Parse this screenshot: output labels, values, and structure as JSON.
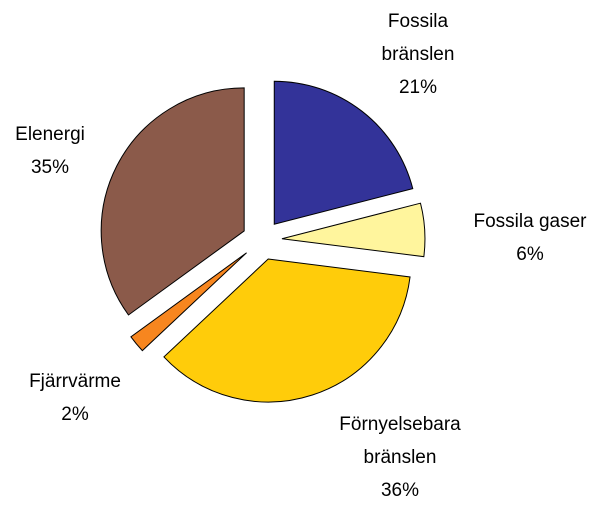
{
  "chart_data": {
    "type": "pie",
    "categories": [
      "Fossila bränslen",
      "Fossila gaser",
      "Förnyelsebara bränslen",
      "Fjärrvärme",
      "Elenergi"
    ],
    "values": [
      21,
      6,
      36,
      2,
      35
    ],
    "value_labels": [
      "21%",
      "6%",
      "36%",
      "2%",
      "35%"
    ],
    "colors": [
      "#333399",
      "#fff59d",
      "#ffcc0a",
      "#f7861f",
      "#8b5a4a"
    ]
  }
}
